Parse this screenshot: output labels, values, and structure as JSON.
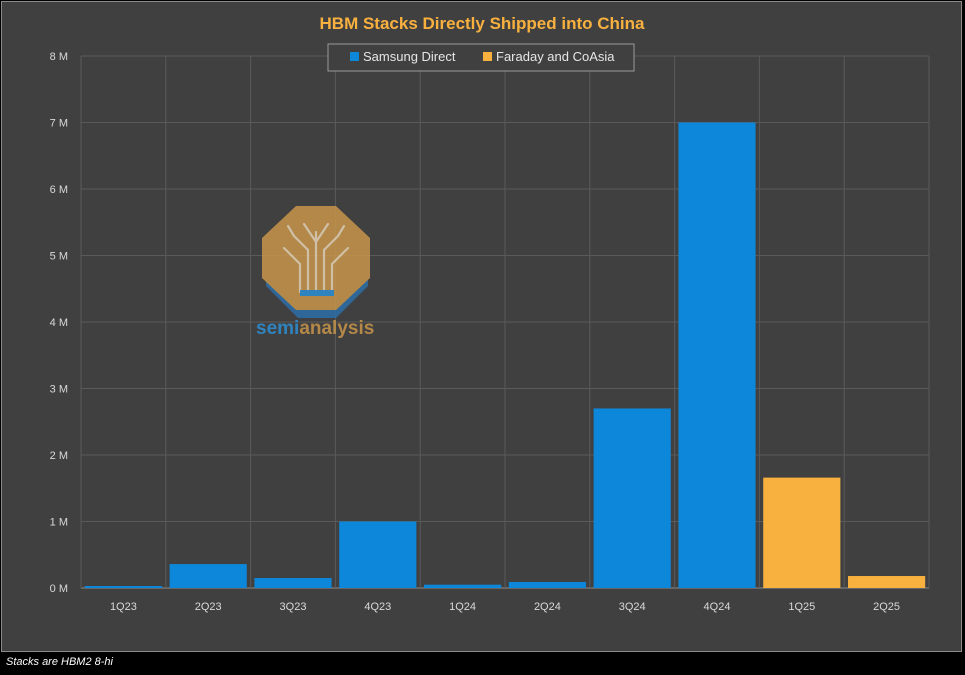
{
  "chart_data": {
    "type": "bar",
    "title": "HBM Stacks Directly Shipped into China",
    "xlabel": "",
    "ylabel": "",
    "categories": [
      "1Q23",
      "2Q23",
      "3Q23",
      "4Q23",
      "1Q24",
      "2Q24",
      "3Q24",
      "4Q24",
      "1Q25",
      "2Q25"
    ],
    "series": [
      {
        "name": "Samsung Direct",
        "color": "#0d87d9",
        "values": [
          30000,
          360000,
          150000,
          1000000,
          50000,
          90000,
          2700000,
          7000000,
          null,
          null
        ]
      },
      {
        "name": "Faraday and CoAsia",
        "color": "#f8b13f",
        "values": [
          null,
          null,
          null,
          null,
          null,
          null,
          null,
          null,
          1660000,
          180000
        ]
      }
    ],
    "ylim": [
      0,
      8000000
    ],
    "y_ticks": [
      0,
      1000000,
      2000000,
      3000000,
      4000000,
      5000000,
      6000000,
      7000000,
      8000000
    ],
    "y_tick_labels": [
      "0 M",
      "1 M",
      "2 M",
      "3 M",
      "4 M",
      "5 M",
      "6 M",
      "7 M",
      "8 M"
    ],
    "grid": true,
    "legend_position": "top-center",
    "title_color": "#f8b13f"
  },
  "watermark": {
    "brand_parts": [
      "semi",
      "analysis"
    ],
    "colors": {
      "primary": "#c8954a",
      "secondary": "#2d8fd5"
    }
  },
  "footnote": "Stacks are HBM2 8-hi"
}
